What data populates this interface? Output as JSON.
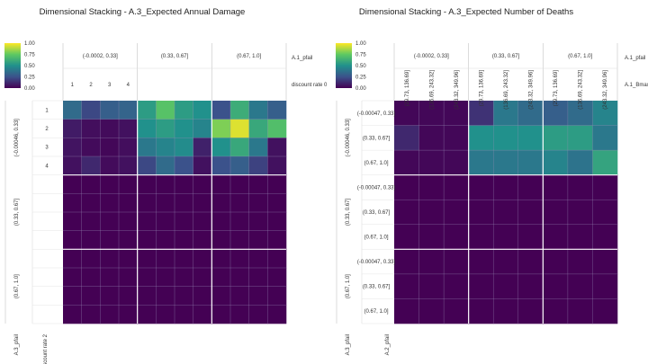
{
  "colors": {
    "colormap": "viridis",
    "min_color": "#440154",
    "max_color": "#fde725",
    "grid_line": "#8a8aa8",
    "frame_line": "#cccccc"
  },
  "colorbar": {
    "ticks": [
      "1.00",
      "0.75",
      "0.50",
      "0.25",
      "0.00"
    ]
  },
  "chart_data": [
    {
      "type": "heatmap",
      "title": "Dimensional Stacking - A.3_Expected Annual Damage",
      "colorscale": "viridis",
      "zlim": [
        0,
        1
      ],
      "col_outer_name": "A.1_pfail",
      "col_outer": [
        "(-0.0002, 0.33]",
        "(0.33, 0.67]",
        "(0.67, 1.0]"
      ],
      "col_inner_name": "discount rate 0",
      "col_inner": [
        "1",
        "2",
        "3",
        "4"
      ],
      "row_outer_name": "A.3_pfail",
      "row_outer": [
        "(-0.00046, 0.33]",
        "(0.33, 0.67]",
        "(0.67, 1.0]"
      ],
      "row_inner_name": "discount rate 2",
      "row_inner": [
        "1",
        "2",
        "3",
        "4"
      ],
      "values": [
        [
          0.35,
          0.22,
          0.3,
          0.32,
          0.55,
          0.72,
          0.55,
          0.5,
          0.25,
          0.62,
          0.4,
          0.3
        ],
        [
          0.08,
          0.04,
          0.03,
          0.05,
          0.5,
          0.55,
          0.5,
          0.45,
          0.8,
          0.95,
          0.6,
          0.7
        ],
        [
          0.06,
          0.03,
          0.02,
          0.04,
          0.4,
          0.45,
          0.48,
          0.1,
          0.5,
          0.6,
          0.4,
          0.05
        ],
        [
          0.05,
          0.12,
          0.03,
          0.05,
          0.22,
          0.35,
          0.25,
          0.05,
          0.25,
          0.3,
          0.2,
          0.05
        ],
        [
          0,
          0,
          0,
          0,
          0,
          0,
          0,
          0,
          0,
          0,
          0,
          0
        ],
        [
          0,
          0,
          0,
          0,
          0,
          0,
          0,
          0,
          0,
          0,
          0,
          0
        ],
        [
          0,
          0,
          0,
          0,
          0,
          0,
          0,
          0,
          0,
          0,
          0,
          0
        ],
        [
          0,
          0,
          0,
          0,
          0,
          0,
          0,
          0,
          0,
          0,
          0,
          0
        ],
        [
          0,
          0,
          0,
          0,
          0,
          0,
          0,
          0,
          0,
          0,
          0,
          0
        ],
        [
          0,
          0,
          0,
          0,
          0,
          0,
          0,
          0,
          0,
          0,
          0,
          0
        ],
        [
          0,
          0,
          0,
          0,
          0,
          0,
          0,
          0,
          0,
          0,
          0,
          0
        ],
        [
          0,
          0,
          0,
          0,
          0,
          0,
          0,
          0,
          0,
          0,
          0,
          0
        ]
      ]
    },
    {
      "type": "heatmap",
      "title": "Dimensional Stacking - A.3_Expected Number of Deaths",
      "colorscale": "viridis",
      "zlim": [
        0,
        1
      ],
      "col_outer_name": "A.1_pfail",
      "col_outer": [
        "(-0.0002, 0.33]",
        "(0.33, 0.67]",
        "(0.67, 1.0]"
      ],
      "col_inner_name": "A.1_Bmax",
      "col_inner": [
        "(29.73, 136.69]",
        "(136.69, 243.32]",
        "(243.32, 349.96]",
        "(29.73, 136.69]",
        "(136.69, 243.32]",
        "(243.32, 349.96]",
        "(29.73, 136.69]",
        "(136.69, 243.32]",
        "(243.32, 349.96]"
      ],
      "row_outer_name": "A.3_pfail",
      "row_outer": [
        "(-0.00046, 0.33]",
        "(0.33, 0.67]",
        "(0.67, 1.0]"
      ],
      "row_inner_name": "A.2_pfail",
      "row_inner": [
        "(-0.00047, 0.33]",
        "(0.33, 0.67]",
        "(0.67, 1.0]",
        "(-0.00047, 0.33]",
        "(0.33, 0.67]",
        "(0.67, 1.0]",
        "(-0.00047, 0.33]",
        "(0.33, 0.67]",
        "(0.67, 1.0]"
      ],
      "values": [
        [
          0.02,
          0.02,
          0.02,
          0.15,
          0.4,
          0.35,
          0.3,
          0.35,
          0.45
        ],
        [
          0.12,
          0.02,
          0.02,
          0.5,
          0.5,
          0.5,
          0.55,
          0.55,
          0.4
        ],
        [
          0.02,
          0.02,
          0.02,
          0.4,
          0.4,
          0.4,
          0.45,
          0.38,
          0.58
        ],
        [
          0,
          0,
          0,
          0,
          0,
          0,
          0,
          0,
          0
        ],
        [
          0,
          0,
          0,
          0,
          0,
          0,
          0,
          0,
          0
        ],
        [
          0,
          0,
          0,
          0,
          0,
          0,
          0,
          0,
          0
        ],
        [
          0,
          0,
          0,
          0,
          0,
          0,
          0,
          0,
          0
        ],
        [
          0,
          0,
          0,
          0,
          0,
          0,
          0,
          0,
          0
        ],
        [
          0,
          0,
          0,
          0,
          0,
          0,
          0,
          0,
          0
        ]
      ]
    }
  ]
}
